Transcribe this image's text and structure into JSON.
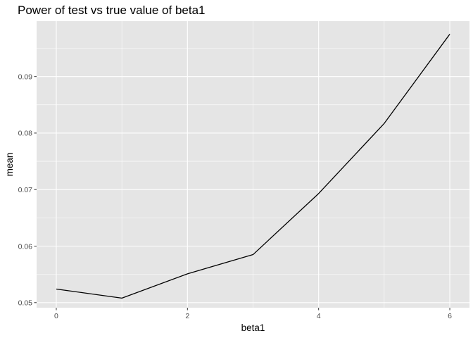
{
  "chart_data": {
    "type": "line",
    "title": "Power of test vs true value of beta1",
    "xlabel": "beta1",
    "ylabel": "mean",
    "x": [
      0,
      1,
      2,
      3,
      4,
      5,
      6
    ],
    "series": [
      {
        "values": [
          0.0524,
          0.0508,
          0.0551,
          0.0585,
          0.0693,
          0.0817,
          0.0975
        ]
      }
    ],
    "xlim": [
      -0.3,
      6.3
    ],
    "ylim": [
      0.0491,
      0.0998
    ],
    "x_ticks": [
      0,
      2,
      4,
      6
    ],
    "x_tick_labels": [
      "0",
      "2",
      "4",
      "6"
    ],
    "y_ticks": [
      0.05,
      0.06,
      0.07,
      0.08,
      0.09
    ],
    "y_tick_labels": [
      "0.05",
      "0.06",
      "0.07",
      "0.08",
      "0.09"
    ],
    "grid": true,
    "line_color": "#000000",
    "panel_color": "#e5e5e5",
    "grid_color": "#ffffff"
  }
}
